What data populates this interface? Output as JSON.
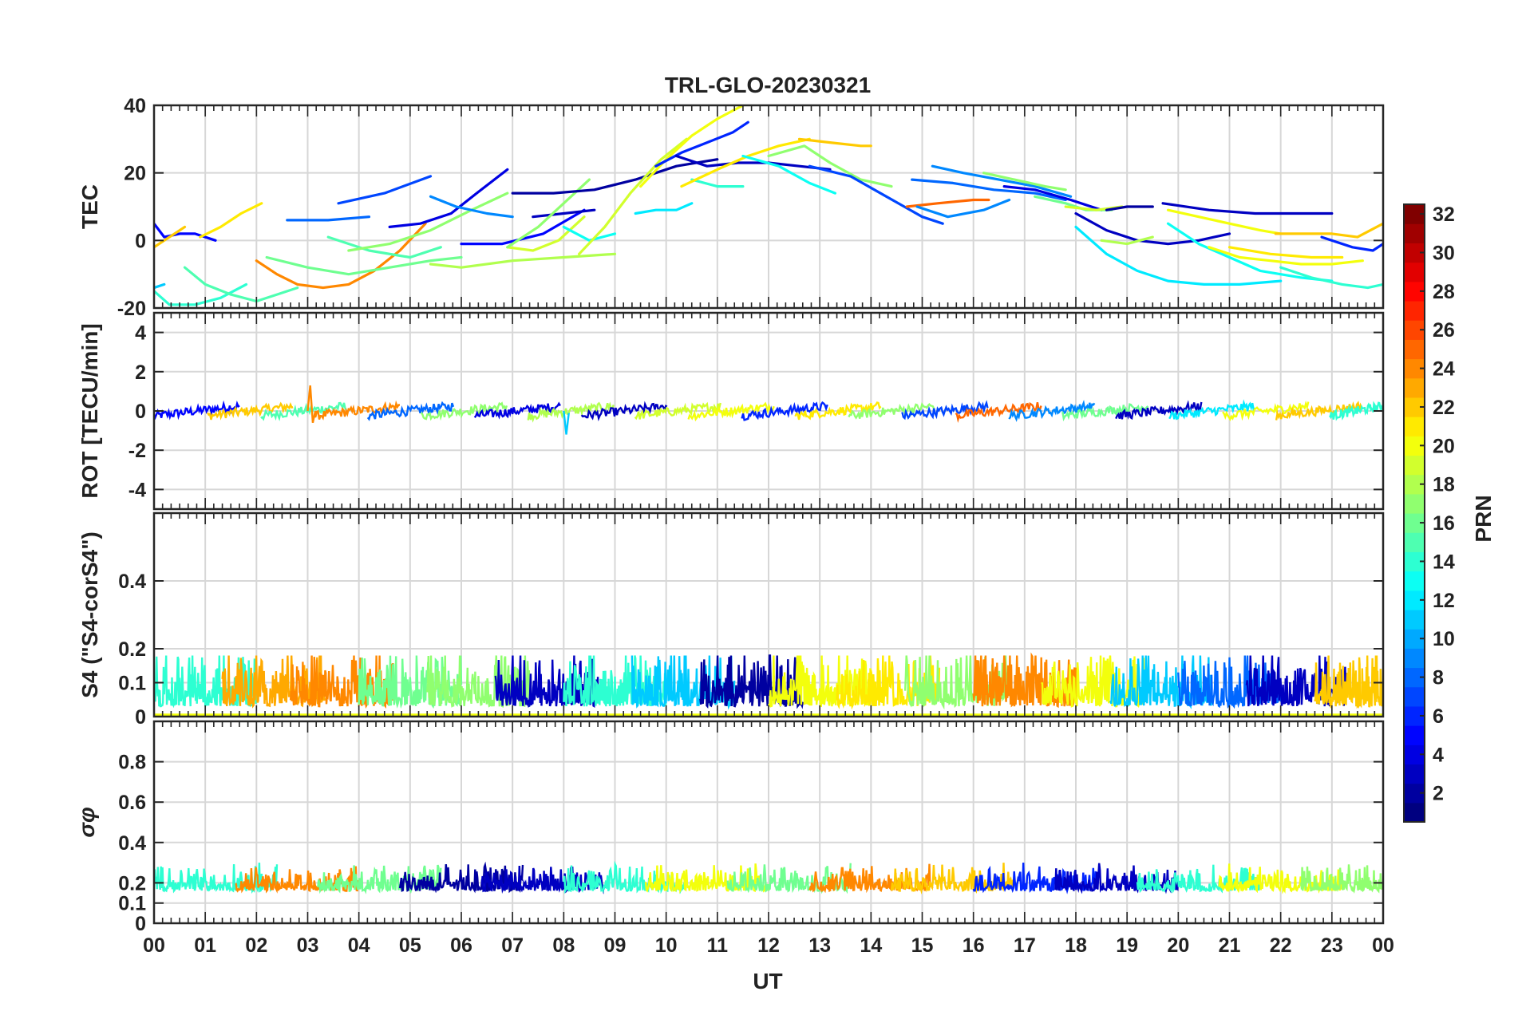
{
  "chart_data": {
    "type": "line",
    "title": "TRL-GLO-20230321",
    "xlabel": "UT",
    "x_unit": "hours UT",
    "xlim": [
      0,
      24
    ],
    "x_tick_labels": [
      "00",
      "01",
      "02",
      "03",
      "04",
      "05",
      "06",
      "07",
      "08",
      "09",
      "10",
      "11",
      "12",
      "13",
      "14",
      "15",
      "16",
      "17",
      "18",
      "19",
      "20",
      "21",
      "22",
      "23",
      "00"
    ],
    "colorbar": {
      "label": "PRN",
      "range": [
        1,
        32
      ],
      "tick_labels": [
        "2",
        "4",
        "6",
        "8",
        "10",
        "12",
        "14",
        "16",
        "18",
        "20",
        "22",
        "24",
        "26",
        "28",
        "30",
        "32"
      ],
      "colormap": "jet"
    },
    "panels": [
      {
        "id": "tec",
        "ylabel": "TEC",
        "ylim": [
          -20,
          40
        ],
        "y_tick_values": [
          -20,
          0,
          20,
          40
        ],
        "y_tick_labels": [
          "-20",
          "0",
          "20",
          "40"
        ],
        "series": [
          {
            "prn": 5,
            "x": [
              0.0,
              0.2,
              0.5,
              0.8,
              1.2
            ],
            "y": [
              5,
              1,
              2,
              2,
              0
            ]
          },
          {
            "prn": 22,
            "x": [
              0.0,
              0.3,
              0.6
            ],
            "y": [
              -2,
              1,
              4
            ]
          },
          {
            "prn": 21,
            "x": [
              0.9,
              1.3,
              1.7,
              2.1
            ],
            "y": [
              1,
              4,
              8,
              11
            ]
          },
          {
            "prn": 14,
            "x": [
              0.0,
              0.3,
              0.8,
              1.3,
              1.8
            ],
            "y": [
              -15,
              -19,
              -19,
              -17,
              -13
            ]
          },
          {
            "prn": 11,
            "x": [
              0.0,
              0.2
            ],
            "y": [
              -14,
              -13
            ]
          },
          {
            "prn": 15,
            "x": [
              0.6,
              1.0,
              1.5,
              2.0,
              2.4,
              2.8
            ],
            "y": [
              -8,
              -13,
              -16,
              -18,
              -16,
              -14
            ]
          },
          {
            "prn": 24,
            "x": [
              2.0,
              2.4,
              2.8,
              3.3,
              3.8,
              4.3,
              4.8,
              5.3
            ],
            "y": [
              -6,
              -10,
              -13,
              -14,
              -13,
              -9,
              -3,
              5
            ]
          },
          {
            "prn": 16,
            "x": [
              2.2,
              3.0,
              3.8,
              4.6,
              5.4,
              6.0
            ],
            "y": [
              -5,
              -8,
              -10,
              -8,
              -6,
              -5
            ]
          },
          {
            "prn": 8,
            "x": [
              2.6,
              3.4,
              4.2
            ],
            "y": [
              6,
              6,
              7
            ]
          },
          {
            "prn": 7,
            "x": [
              3.6,
              4.5,
              5.4
            ],
            "y": [
              11,
              14,
              19
            ]
          },
          {
            "prn": 15,
            "x": [
              3.4,
              4.2,
              5.0,
              5.6
            ],
            "y": [
              1,
              -3,
              -5,
              -2
            ]
          },
          {
            "prn": 17,
            "x": [
              3.8,
              4.6,
              5.4,
              6.2,
              6.9
            ],
            "y": [
              -3,
              -1,
              3,
              9,
              14
            ]
          },
          {
            "prn": 4,
            "x": [
              4.6,
              5.2,
              5.8,
              6.3,
              6.9
            ],
            "y": [
              4,
              5,
              8,
              14,
              21
            ]
          },
          {
            "prn": 9,
            "x": [
              5.4,
              5.9,
              6.5,
              7.0
            ],
            "y": [
              13,
              10,
              8,
              7
            ]
          },
          {
            "prn": 18,
            "x": [
              5.4,
              6.0,
              7.0,
              8.0,
              9.0
            ],
            "y": [
              -7,
              -8,
              -6,
              -5,
              -4
            ]
          },
          {
            "prn": 5,
            "x": [
              6.0,
              6.8,
              7.6,
              8.4
            ],
            "y": [
              -1,
              -1,
              2,
              9
            ]
          },
          {
            "prn": 3,
            "x": [
              7.4,
              8.0,
              8.6
            ],
            "y": [
              7,
              8,
              9
            ]
          },
          {
            "prn": 19,
            "x": [
              6.9,
              7.4,
              7.9,
              8.4
            ],
            "y": [
              -2,
              -3,
              0,
              7
            ]
          },
          {
            "prn": 17,
            "x": [
              6.9,
              7.5,
              8.0,
              8.5
            ],
            "y": [
              -2,
              4,
              11,
              18
            ]
          },
          {
            "prn": 2,
            "x": [
              7.0,
              7.8,
              8.6,
              9.4,
              10.2,
              11.0
            ],
            "y": [
              14,
              14,
              15,
              18,
              22,
              24
            ]
          },
          {
            "prn": 13,
            "x": [
              8.0,
              8.5,
              9.0
            ],
            "y": [
              4,
              0,
              2
            ]
          },
          {
            "prn": 19,
            "x": [
              8.3,
              8.8,
              9.3,
              9.9,
              10.4
            ],
            "y": [
              -4,
              4,
              14,
              24,
              30
            ]
          },
          {
            "prn": 12,
            "x": [
              9.4,
              9.8,
              10.2,
              10.5
            ],
            "y": [
              8,
              9,
              9,
              11
            ]
          },
          {
            "prn": 20,
            "x": [
              9.5,
              10.0,
              10.5,
              11.0,
              11.5
            ],
            "y": [
              16,
              24,
              31,
              36,
              40
            ]
          },
          {
            "prn": 6,
            "x": [
              9.8,
              10.3,
              10.8,
              11.3,
              11.6
            ],
            "y": [
              22,
              26,
              29,
              32,
              35
            ]
          },
          {
            "prn": 14,
            "x": [
              10.5,
              11.0,
              11.5
            ],
            "y": [
              18,
              16,
              16
            ]
          },
          {
            "prn": 3,
            "x": [
              10.2,
              10.8,
              11.4,
              12.0,
              12.6,
              13.2
            ],
            "y": [
              25,
              22,
              23,
              23,
              22,
              21
            ]
          },
          {
            "prn": 21,
            "x": [
              10.3,
              11.0,
              11.6,
              12.2,
              12.8
            ],
            "y": [
              16,
              21,
              25,
              28,
              30
            ]
          },
          {
            "prn": 22,
            "x": [
              12.6,
              13.2,
              13.8,
              14.0
            ],
            "y": [
              30,
              29,
              28,
              28
            ]
          },
          {
            "prn": 17,
            "x": [
              12.0,
              12.7,
              13.2,
              13.8,
              14.4
            ],
            "y": [
              25,
              28,
              23,
              18,
              16
            ]
          },
          {
            "prn": 13,
            "x": [
              11.5,
              12.2,
              12.8,
              13.3
            ],
            "y": [
              25,
              22,
              17,
              14
            ]
          },
          {
            "prn": 7,
            "x": [
              12.8,
              13.6,
              14.3,
              15.0,
              15.4
            ],
            "y": [
              22,
              19,
              13,
              7,
              5
            ]
          },
          {
            "prn": 25,
            "x": [
              14.7,
              15.3,
              16.0,
              16.3
            ],
            "y": [
              10,
              11,
              12,
              12
            ]
          },
          {
            "prn": 8,
            "x": [
              14.8,
              15.6,
              16.4,
              17.2,
              17.8
            ],
            "y": [
              18,
              17,
              15,
              14,
              12
            ]
          },
          {
            "prn": 9,
            "x": [
              15.2,
              15.8,
              16.5,
              17.2,
              17.9
            ],
            "y": [
              22,
              20,
              18,
              16,
              13
            ]
          },
          {
            "prn": 9,
            "x": [
              14.9,
              15.5,
              16.2,
              16.7
            ],
            "y": [
              10,
              7,
              9,
              12
            ]
          },
          {
            "prn": 17,
            "x": [
              16.2,
              16.8,
              17.4,
              17.8
            ],
            "y": [
              20,
              18,
              16,
              15
            ]
          },
          {
            "prn": 4,
            "x": [
              16.6,
              17.2,
              17.9,
              18.5
            ],
            "y": [
              16,
              15,
              12,
              9
            ]
          },
          {
            "prn": 16,
            "x": [
              17.2,
              17.8,
              18.2,
              18.7
            ],
            "y": [
              13,
              11,
              9,
              9
            ]
          },
          {
            "prn": 19,
            "x": [
              17.8,
              18.4,
              18.9
            ],
            "y": [
              10,
              9,
              10
            ]
          },
          {
            "prn": 2,
            "x": [
              18.6,
              19.0,
              19.5
            ],
            "y": [
              9,
              10,
              10
            ]
          },
          {
            "prn": 3,
            "x": [
              18.0,
              18.6,
              19.2,
              19.8,
              20.4,
              21.0
            ],
            "y": [
              8,
              3,
              0,
              -1,
              0,
              2
            ]
          },
          {
            "prn": 12,
            "x": [
              18.0,
              18.6,
              19.2,
              19.8,
              20.5,
              21.2,
              22.0
            ],
            "y": [
              4,
              -4,
              -9,
              -12,
              -13,
              -13,
              -12
            ]
          },
          {
            "prn": 18,
            "x": [
              18.5,
              19.0,
              19.5
            ],
            "y": [
              0,
              -1,
              1
            ]
          },
          {
            "prn": 3,
            "x": [
              19.7,
              20.6,
              21.5,
              22.4,
              23.0
            ],
            "y": [
              11,
              9,
              8,
              8,
              8
            ]
          },
          {
            "prn": 20,
            "x": [
              19.8,
              20.4,
              21.0,
              21.6,
              22.0
            ],
            "y": [
              9,
              7,
              5,
              3,
              2
            ]
          },
          {
            "prn": 13,
            "x": [
              19.8,
              20.4,
              21.0,
              21.6,
              22.4,
              23.0
            ],
            "y": [
              5,
              -1,
              -5,
              -9,
              -11,
              -12
            ]
          },
          {
            "prn": 20,
            "x": [
              20.6,
              21.2,
              21.8,
              22.4,
              23.0,
              23.6
            ],
            "y": [
              -2,
              -5,
              -6,
              -7,
              -7,
              -6
            ]
          },
          {
            "prn": 21,
            "x": [
              21.0,
              21.8,
              22.6,
              23.2
            ],
            "y": [
              -2,
              -4,
              -5,
              -5
            ]
          },
          {
            "prn": 22,
            "x": [
              21.9,
              22.4,
              23.0,
              23.5,
              24.0
            ],
            "y": [
              2,
              2,
              2,
              1,
              5
            ]
          },
          {
            "prn": 14,
            "x": [
              22.0,
              22.6,
              23.2,
              23.7,
              24.0
            ],
            "y": [
              -8,
              -11,
              -13,
              -14,
              -13
            ]
          },
          {
            "prn": 6,
            "x": [
              22.8,
              23.4,
              23.8,
              24.0
            ],
            "y": [
              1,
              -2,
              -3,
              -1
            ]
          }
        ]
      },
      {
        "id": "rot",
        "ylabel": "ROT [TECU/min]",
        "ylim": [
          -5,
          5
        ],
        "y_tick_values": [
          -4,
          -2,
          0,
          2,
          4
        ],
        "y_tick_labels": [
          "-4",
          "-2",
          "0",
          "2",
          "4"
        ],
        "band": {
          "center": 0.0,
          "spread": 0.45,
          "extreme_values": [
            1.3,
            -1.2
          ]
        },
        "segment_start_prns": [
          5,
          22,
          15,
          24,
          8,
          17,
          4,
          18,
          3,
          19,
          20,
          6,
          21,
          17,
          7,
          25,
          9,
          16,
          3,
          12,
          20,
          22,
          14
        ]
      },
      {
        "id": "s4",
        "ylabel": "S4 (\"S4-corS4\")",
        "ylim": [
          0,
          0.6
        ],
        "y_tick_values": [
          0,
          0.1,
          0.2,
          0.4
        ],
        "y_tick_labels": [
          "0",
          "0.1",
          "0.2",
          "0.4"
        ],
        "baseline": 0.03,
        "typical_max": 0.15,
        "peak_max": 0.18,
        "segment_start_prns": [
          14,
          23,
          24,
          16,
          17,
          3,
          14,
          11,
          2,
          20,
          21,
          17,
          24,
          20,
          11,
          8,
          3,
          22
        ]
      },
      {
        "id": "sigma_phi",
        "ylabel": "σφ",
        "ylim": [
          0,
          1.0
        ],
        "y_tick_values": [
          0,
          0.1,
          0.2,
          0.4,
          0.6,
          0.8
        ],
        "y_tick_labels": [
          "0",
          "0.1",
          "0.2",
          "0.4",
          "0.6",
          "0.8"
        ],
        "baseline": 0.16,
        "typical_max": 0.25,
        "peak_max": 0.3,
        "segment_start_prns": [
          14,
          24,
          16,
          2,
          3,
          14,
          20,
          16,
          24,
          22,
          6,
          3,
          14,
          20,
          17
        ]
      }
    ]
  }
}
